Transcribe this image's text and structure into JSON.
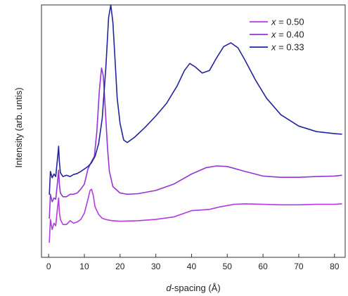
{
  "chart_data": {
    "type": "line",
    "title": "",
    "xlabel": {
      "italic": "d",
      "rest": "-spacing (Å)"
    },
    "ylabel": "Intensity (arb. untis)",
    "xlim": [
      -2,
      83
    ],
    "ylim": [
      0,
      10
    ],
    "xticks": [
      0,
      10,
      20,
      30,
      40,
      50,
      60,
      70,
      80
    ],
    "yticks_shown": false,
    "legend": {
      "position": "top-right"
    },
    "series": [
      {
        "name": "x = 0.50",
        "legend_var": "x",
        "legend_rest": " = 0.50",
        "color": "#b43ae0",
        "points": [
          [
            0.2,
            0.6
          ],
          [
            0.5,
            1.5
          ],
          [
            1.0,
            1.1
          ],
          [
            1.5,
            1.35
          ],
          [
            2.0,
            1.25
          ],
          [
            2.5,
            2.0
          ],
          [
            2.8,
            2.35
          ],
          [
            3.0,
            1.8
          ],
          [
            3.3,
            1.5
          ],
          [
            4.0,
            1.3
          ],
          [
            5.0,
            1.3
          ],
          [
            6.0,
            1.45
          ],
          [
            7.0,
            1.35
          ],
          [
            8.0,
            1.4
          ],
          [
            9.0,
            1.5
          ],
          [
            10.0,
            1.75
          ],
          [
            11.0,
            2.3
          ],
          [
            11.6,
            2.65
          ],
          [
            12.0,
            2.7
          ],
          [
            12.5,
            2.45
          ],
          [
            13.0,
            2.0
          ],
          [
            14.0,
            1.7
          ],
          [
            15.0,
            1.55
          ],
          [
            16.0,
            1.5
          ],
          [
            17.0,
            1.47
          ],
          [
            18.0,
            1.45
          ],
          [
            20.0,
            1.43
          ],
          [
            25.0,
            1.45
          ],
          [
            30.0,
            1.5
          ],
          [
            35.0,
            1.6
          ],
          [
            38.0,
            1.75
          ],
          [
            40.0,
            1.85
          ],
          [
            42.0,
            1.87
          ],
          [
            45.0,
            1.9
          ],
          [
            48.0,
            2.0
          ],
          [
            52.0,
            2.1
          ],
          [
            55.0,
            2.12
          ],
          [
            60.0,
            2.1
          ],
          [
            65.0,
            2.08
          ],
          [
            70.0,
            2.08
          ],
          [
            75.0,
            2.1
          ],
          [
            80.0,
            2.1
          ],
          [
            82.0,
            2.12
          ]
        ]
      },
      {
        "name": "x = 0.40",
        "legend_var": "x",
        "legend_rest": " = 0.40",
        "color": "#9633d8",
        "points": [
          [
            0.2,
            1.55
          ],
          [
            0.5,
            2.5
          ],
          [
            1.0,
            2.2
          ],
          [
            1.5,
            2.35
          ],
          [
            2.0,
            2.3
          ],
          [
            2.5,
            3.0
          ],
          [
            2.8,
            3.45
          ],
          [
            3.0,
            2.9
          ],
          [
            3.3,
            2.55
          ],
          [
            4.0,
            2.4
          ],
          [
            5.0,
            2.4
          ],
          [
            6.0,
            2.5
          ],
          [
            7.0,
            2.5
          ],
          [
            8.0,
            2.55
          ],
          [
            9.0,
            2.7
          ],
          [
            10.0,
            2.9
          ],
          [
            11.0,
            3.5
          ],
          [
            12.0,
            3.8
          ],
          [
            12.8,
            4.0
          ],
          [
            13.5,
            5.0
          ],
          [
            14.2,
            6.6
          ],
          [
            14.8,
            7.5
          ],
          [
            15.3,
            7.2
          ],
          [
            15.8,
            6.0
          ],
          [
            16.5,
            4.3
          ],
          [
            17.0,
            3.4
          ],
          [
            18.0,
            2.8
          ],
          [
            20.0,
            2.55
          ],
          [
            22.0,
            2.5
          ],
          [
            25.0,
            2.52
          ],
          [
            30.0,
            2.65
          ],
          [
            35.0,
            2.9
          ],
          [
            40.0,
            3.3
          ],
          [
            44.0,
            3.55
          ],
          [
            47.0,
            3.62
          ],
          [
            50.0,
            3.6
          ],
          [
            55.0,
            3.4
          ],
          [
            60.0,
            3.22
          ],
          [
            65.0,
            3.17
          ],
          [
            70.0,
            3.17
          ],
          [
            75.0,
            3.2
          ],
          [
            80.0,
            3.22
          ],
          [
            82.0,
            3.25
          ]
        ]
      },
      {
        "name": "x = 0.33",
        "legend_var": "x",
        "legend_rest": " = 0.33",
        "color": "#23249c",
        "points": [
          [
            0.2,
            2.5
          ],
          [
            0.5,
            3.4
          ],
          [
            1.0,
            3.15
          ],
          [
            1.5,
            3.3
          ],
          [
            2.0,
            3.2
          ],
          [
            2.5,
            3.95
          ],
          [
            2.8,
            4.4
          ],
          [
            3.0,
            3.8
          ],
          [
            3.3,
            3.35
          ],
          [
            4.0,
            3.2
          ],
          [
            5.0,
            3.25
          ],
          [
            6.0,
            3.2
          ],
          [
            7.0,
            3.28
          ],
          [
            8.0,
            3.32
          ],
          [
            9.0,
            3.4
          ],
          [
            10.0,
            3.5
          ],
          [
            11.0,
            3.6
          ],
          [
            12.0,
            3.75
          ],
          [
            13.0,
            4.0
          ],
          [
            14.0,
            4.5
          ],
          [
            15.0,
            5.5
          ],
          [
            16.0,
            7.5
          ],
          [
            16.8,
            9.5
          ],
          [
            17.4,
            10.0
          ],
          [
            18.0,
            9.3
          ],
          [
            18.6,
            7.8
          ],
          [
            19.2,
            6.3
          ],
          [
            20.0,
            5.3
          ],
          [
            21.0,
            4.65
          ],
          [
            22.0,
            4.55
          ],
          [
            24.0,
            4.75
          ],
          [
            27.0,
            5.15
          ],
          [
            30.0,
            5.6
          ],
          [
            33.0,
            6.1
          ],
          [
            36.0,
            6.8
          ],
          [
            38.0,
            7.4
          ],
          [
            39.5,
            7.68
          ],
          [
            41.0,
            7.55
          ],
          [
            43.0,
            7.3
          ],
          [
            45.0,
            7.4
          ],
          [
            47.0,
            7.9
          ],
          [
            49.0,
            8.35
          ],
          [
            51.0,
            8.5
          ],
          [
            53.0,
            8.3
          ],
          [
            55.0,
            7.8
          ],
          [
            58.0,
            7.0
          ],
          [
            61.0,
            6.3
          ],
          [
            65.0,
            5.65
          ],
          [
            70.0,
            5.2
          ],
          [
            75.0,
            4.98
          ],
          [
            80.0,
            4.9
          ],
          [
            82.0,
            4.88
          ]
        ]
      }
    ]
  }
}
